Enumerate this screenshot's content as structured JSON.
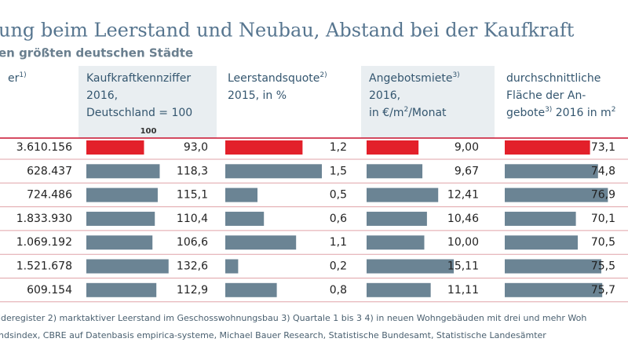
{
  "title": "ung beim Leerstand und Neubau, Abstand bei der Kaufkraft",
  "subtitle": "en größten deutschen Städte",
  "table": {
    "columns": [
      {
        "header": [
          [
            "er",
            {
              "sup": "1)"
            }
          ]
        ],
        "labels": [
          "3.610.156",
          "628.437",
          "724.486",
          "1.833.930",
          "1.069.192",
          "1.521.678",
          "609.154"
        ]
      },
      {
        "header": [
          [
            "Kaufkraftkennziffer"
          ],
          [
            "2016,"
          ],
          [
            "Deutschland = 100"
          ]
        ],
        "reference": 100,
        "values": [
          93.0,
          118.3,
          115.1,
          110.4,
          106.6,
          132.6,
          112.9
        ],
        "value_labels": [
          "93,0",
          "118,3",
          "115,1",
          "110,4",
          "106,6",
          "132,6",
          "112,9"
        ]
      },
      {
        "header": [
          [
            "Leerstandsquote",
            {
              "sup": "2)"
            }
          ],
          [
            "2015, in %"
          ]
        ],
        "values": [
          1.2,
          1.5,
          0.5,
          0.6,
          1.1,
          0.2,
          0.8
        ],
        "value_labels": [
          "1,2",
          "1,5",
          "0,5",
          "0,6",
          "1,1",
          "0,2",
          "0,8"
        ]
      },
      {
        "header": [
          [
            "Angebotsmiete",
            {
              "sup": "3)"
            }
          ],
          [
            "2016,"
          ],
          [
            "in €/m",
            {
              "sup": "2"
            },
            "/Monat"
          ]
        ],
        "values": [
          9.0,
          9.67,
          12.41,
          10.46,
          10.0,
          15.11,
          11.11
        ],
        "value_labels": [
          "9,00",
          "9,67",
          "12,41",
          "10,46",
          "10,00",
          "15,11",
          "11,11"
        ]
      },
      {
        "header": [
          [
            "durchschnittliche"
          ],
          [
            "Fläche der An-"
          ],
          [
            "gebote",
            {
              "sup": "3)"
            },
            " 2016 in m",
            {
              "sup": "2"
            }
          ]
        ],
        "values": [
          73.1,
          74.8,
          76.9,
          70.1,
          70.5,
          75.5,
          75.7
        ],
        "value_labels": [
          "73,1",
          "74,8",
          "76,9",
          "70,1",
          "70,5",
          "75,5",
          "75,7"
        ]
      }
    ],
    "color": "#6b8494",
    "highlight": {
      "row": 0,
      "color": "#e3202a"
    }
  },
  "footnotes": [
    "lderegister   2) marktaktiver Leerstand im Geschosswohnungsbau   3) Quartale 1 bis 3   4) in neuen Wohngebäuden mit drei und mehr Woh",
    "ndsindex, CBRE auf Datenbasis empirica-systeme, Michael Bauer Research, Statistische Bundesamt, Statistische Landesämter"
  ]
}
